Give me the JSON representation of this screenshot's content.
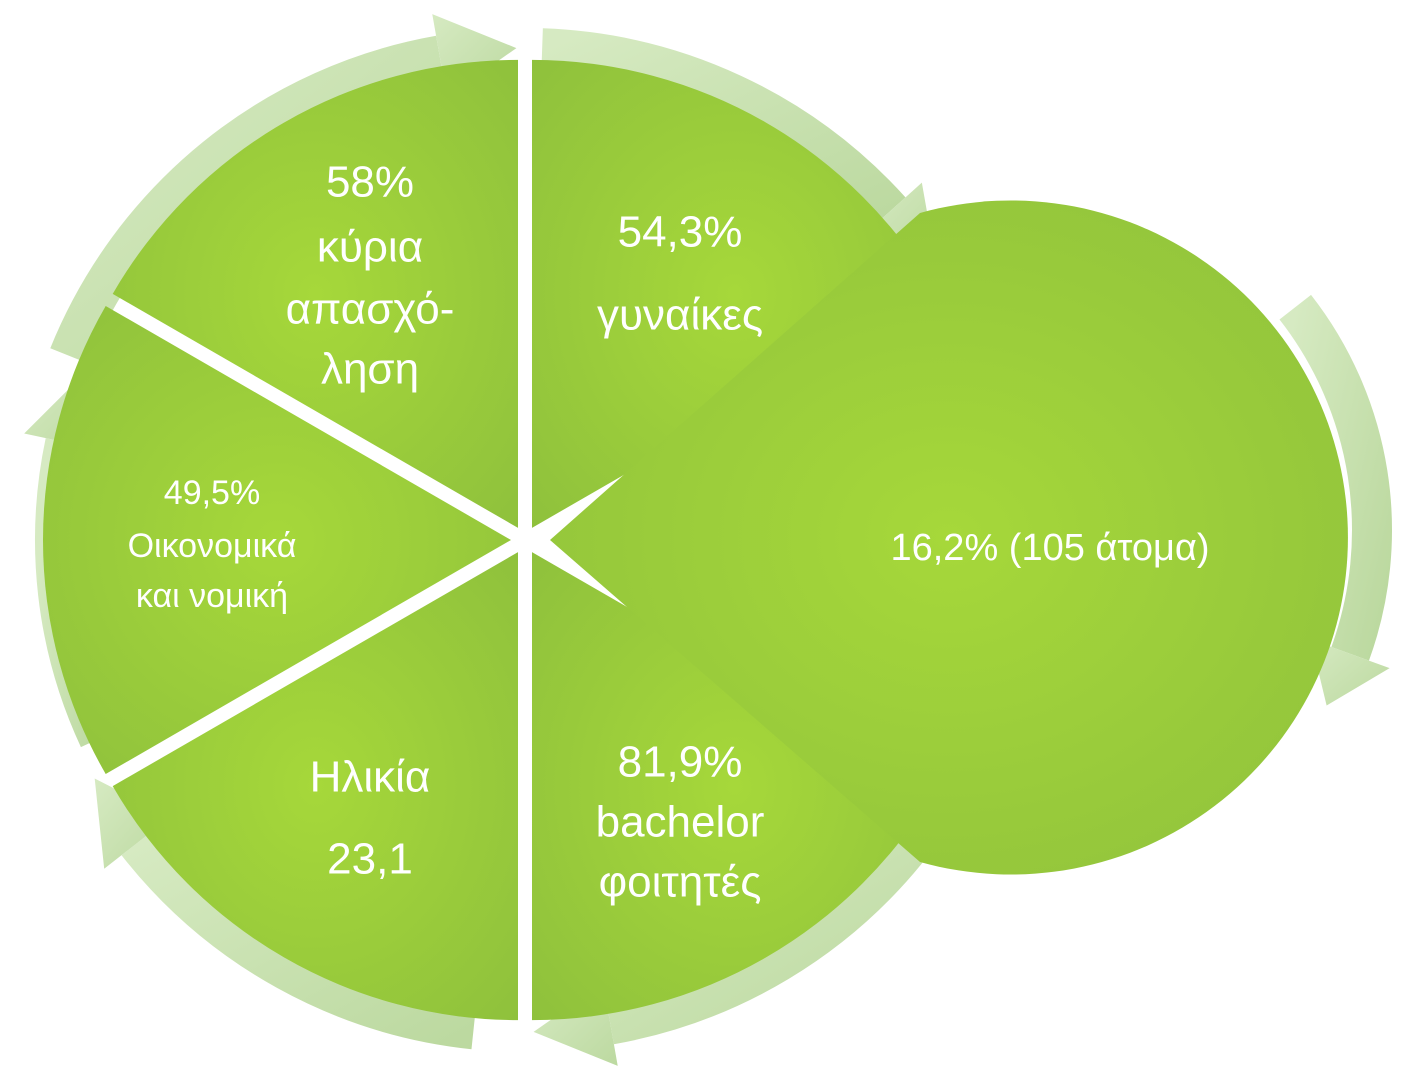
{
  "nodes": [
    {
      "lines": [
        "58%",
        "κύρια",
        "απασχό-",
        "ληση"
      ]
    },
    {
      "lines": [
        "54,3%",
        "γυναίκες"
      ]
    },
    {
      "lines": [
        "16,2% (105 άτομα)"
      ]
    },
    {
      "lines": [
        "81,9%",
        "bachelor",
        "φοιτητές"
      ]
    },
    {
      "lines": [
        "Ηλικία",
        "23,1"
      ]
    },
    {
      "lines": [
        "49,5%",
        "Οικονομικά",
        "και νομική"
      ]
    }
  ]
}
